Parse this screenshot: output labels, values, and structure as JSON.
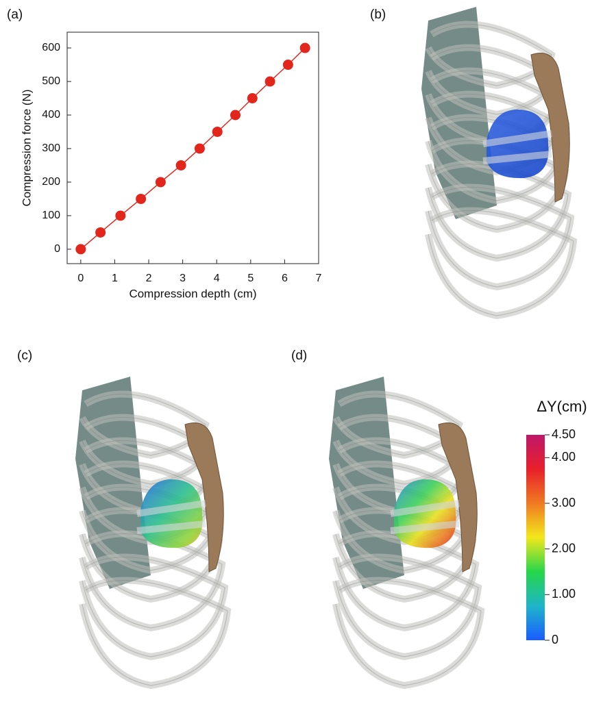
{
  "panel_labels": [
    "(a)",
    "(b)",
    "(c)",
    "(d)"
  ],
  "chart_data": [
    {
      "type": "line",
      "x_label": "Compression depth (cm)",
      "y_label": "Compression force (N)",
      "x": [
        0,
        0.58,
        1.17,
        1.77,
        2.35,
        2.95,
        3.5,
        4.02,
        4.55,
        5.05,
        5.57,
        6.1,
        6.6
      ],
      "series": [
        {
          "color": "#e3261c",
          "values": [
            0,
            50,
            100,
            150,
            200,
            250,
            300,
            350,
            400,
            450,
            500,
            550,
            600
          ]
        }
      ],
      "xlim": [
        -0.4,
        7
      ],
      "ylim": [
        -43,
        647
      ],
      "xticks": [
        0,
        1,
        2,
        3,
        4,
        5,
        6,
        7
      ],
      "yticks": [
        0,
        100,
        200,
        300,
        400,
        500,
        600
      ]
    },
    {
      "type": "colorbar",
      "title": "ΔY(cm)",
      "ylim": [
        0,
        4.5
      ],
      "yticks": [
        0,
        {
          "value": 1,
          "label": "1.00"
        },
        {
          "value": 2,
          "label": "2.00"
        },
        {
          "value": 3,
          "label": "3.00"
        },
        {
          "value": 4,
          "label": "4.00"
        },
        {
          "value": 4.5,
          "label": "4.50"
        }
      ],
      "colormap": [
        "#1a5cff",
        "#1fb5c9",
        "#26d64a",
        "#f2e81c",
        "#f07b22",
        "#e8202a",
        "#c0176b"
      ]
    }
  ]
}
